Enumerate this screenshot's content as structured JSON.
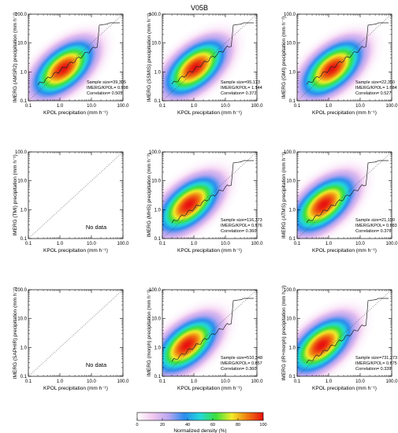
{
  "figure": {
    "title": "V05B",
    "xlabel": "KPOL precipitation (mm h⁻¹)",
    "ticks": [
      "0.1",
      "1.0",
      "10.0",
      "100.0"
    ],
    "stats_labels": {
      "n": "Sample size=",
      "ratio": "IMERG/KPOL=",
      "corr": "Correlation="
    },
    "no_data_text": "No data"
  },
  "colorbar": {
    "label": "Normalized density (%)",
    "ticks": [
      "0",
      "20",
      "40",
      "60",
      "80",
      "100"
    ],
    "stops": [
      "#ffffff",
      "#f2c8f0",
      "#b8a6f0",
      "#2a8cf0",
      "#22d8d8",
      "#3ce03c",
      "#f2ec2a",
      "#f07a10",
      "#e81010"
    ]
  },
  "chart_data": [
    {
      "type": "heatmap",
      "ylabel": "IMERG (AMSR2) precipitation (mm h⁻¹)",
      "sample_size": "39,305",
      "ratio": "0.998",
      "correlation": "0.505",
      "has_data": true,
      "peak": [
        1.3,
        1.3
      ],
      "xlim": [
        0.1,
        100
      ],
      "ylim": [
        0.1,
        100
      ],
      "log": true
    },
    {
      "type": "heatmap",
      "ylabel": "IMERG (SSMIS) precipitation (mm h⁻¹)",
      "sample_size": "95,173",
      "ratio": "1.144",
      "correlation": "0.371",
      "has_data": true,
      "peak": [
        1.1,
        1.4
      ],
      "xlim": [
        0.1,
        100
      ],
      "ylim": [
        0.1,
        100
      ],
      "log": true
    },
    {
      "type": "heatmap",
      "ylabel": "IMERG (GMI) precipitation (mm h⁻¹)",
      "sample_size": "22,350",
      "ratio": "1.084",
      "correlation": "0.527",
      "has_data": true,
      "peak": [
        1.3,
        1.3
      ],
      "xlim": [
        0.1,
        100
      ],
      "ylim": [
        0.1,
        100
      ],
      "log": true
    },
    {
      "type": "heatmap",
      "ylabel": "IMERG (TMI) precipitation (mm h⁻¹)",
      "has_data": false,
      "xlim": [
        0.1,
        100
      ],
      "ylim": [
        0.1,
        100
      ],
      "log": true
    },
    {
      "type": "heatmap",
      "ylabel": "IMERG (MHS) precipitation (mm h⁻¹)",
      "sample_size": "116,773",
      "ratio": "0.976",
      "correlation": "0.360",
      "has_data": true,
      "peak": [
        0.7,
        1.5
      ],
      "xlim": [
        0.1,
        100
      ],
      "ylim": [
        0.1,
        100
      ],
      "log": true
    },
    {
      "type": "heatmap",
      "ylabel": "IMERG (ATMS) precipitation (mm h⁻¹)",
      "sample_size": "21,190",
      "ratio": "0.983",
      "correlation": "0.376",
      "has_data": true,
      "peak": [
        0.7,
        1.5
      ],
      "xlim": [
        0.1,
        100
      ],
      "ylim": [
        0.1,
        100
      ],
      "log": true
    },
    {
      "type": "heatmap",
      "ylabel": "IMERG (SAPHIR) precipitation (mm h⁻¹)",
      "has_data": false,
      "xlim": [
        0.1,
        100
      ],
      "ylim": [
        0.1,
        100
      ],
      "log": true
    },
    {
      "type": "heatmap",
      "ylabel": "IMERG (morph) precipitation (mm h⁻¹)",
      "sample_size": "510,348",
      "ratio": "0.857",
      "correlation": "0.360",
      "has_data": true,
      "peak": [
        0.6,
        1.2
      ],
      "xlim": [
        0.1,
        100
      ],
      "ylim": [
        0.1,
        100
      ],
      "log": true
    },
    {
      "type": "heatmap",
      "ylabel": "IMERG (IR+morph) precipitation (mm h⁻¹)",
      "sample_size": "731,273",
      "ratio": "0.675",
      "correlation": "0.339",
      "has_data": true,
      "peak": [
        0.6,
        1.2
      ],
      "xlim": [
        0.1,
        100
      ],
      "ylim": [
        0.1,
        100
      ],
      "log": true
    }
  ]
}
